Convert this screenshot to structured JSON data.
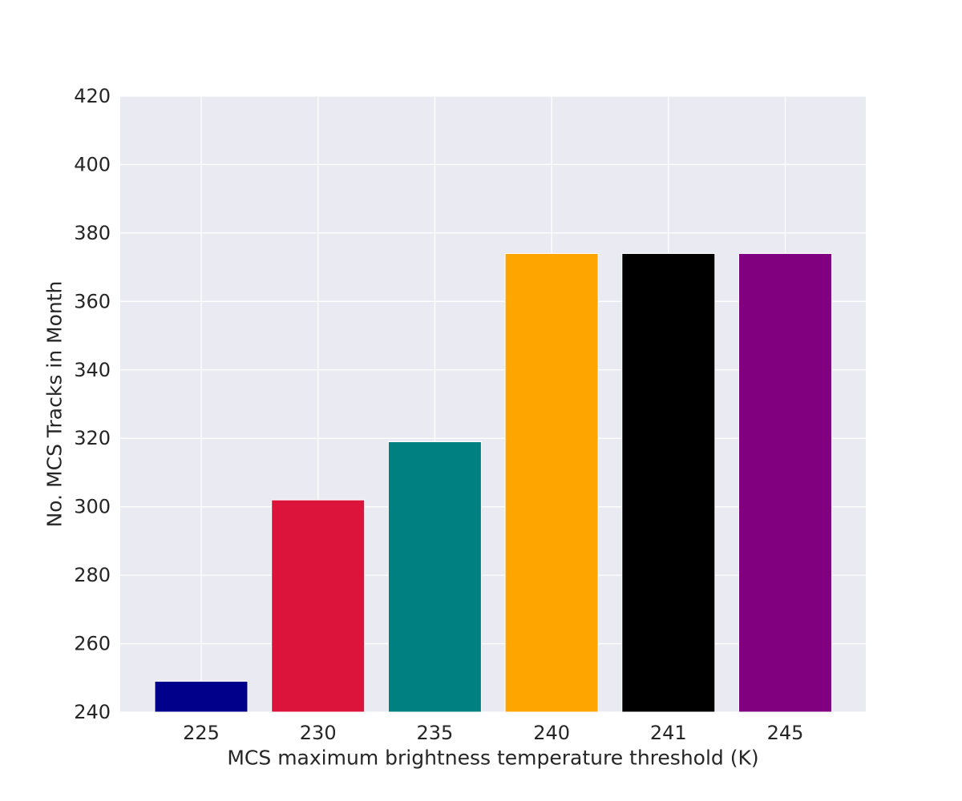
{
  "chart_data": {
    "type": "bar",
    "title": "",
    "xlabel": "MCS maximum brightness temperature threshold (K)",
    "ylabel": "No. MCS Tracks in Month",
    "categories": [
      "225",
      "230",
      "235",
      "240",
      "241",
      "245"
    ],
    "values": [
      249,
      302,
      319,
      374,
      374,
      374
    ],
    "colors": [
      "#00008b",
      "#dc143c",
      "#008080",
      "#ffa500",
      "#000000",
      "#800080"
    ],
    "ylim": [
      240,
      420
    ],
    "yticks": [
      240,
      260,
      280,
      300,
      320,
      340,
      360,
      380,
      400,
      420
    ],
    "grid": true,
    "legend": "none",
    "style": {
      "plot_background": "#eaeaf2",
      "grid_color": "#ffffff"
    }
  }
}
